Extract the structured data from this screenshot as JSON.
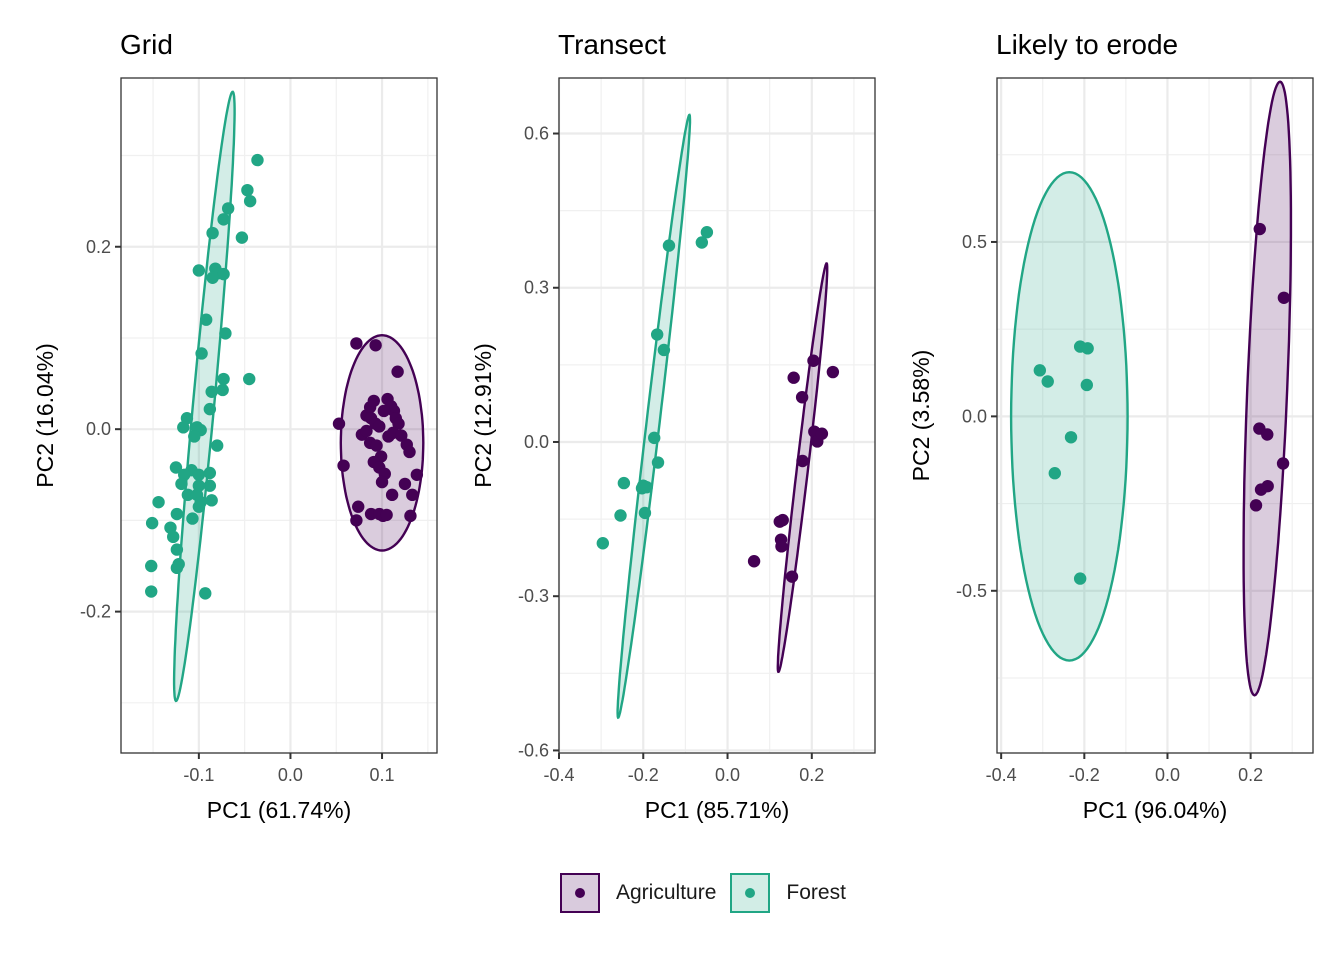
{
  "chart_data": [
    {
      "type": "scatter",
      "title": "Grid",
      "xlabel": "PC1 (61.74%)",
      "ylabel": "PC2 (16.04%)",
      "xlim": [
        -0.185,
        0.16
      ],
      "ylim": [
        -0.355,
        0.385
      ],
      "xticks": [
        -0.1,
        0.0,
        0.1
      ],
      "xtick_labels": [
        "-0.1",
        "0.0",
        "0.1"
      ],
      "yticks": [
        -0.2,
        0.0,
        0.2
      ],
      "ytick_labels": [
        "-0.2",
        "0.0",
        "0.2"
      ],
      "grid": true,
      "series": [
        {
          "name": "Agriculture",
          "points": [
            [
              0.072,
              0.094
            ],
            [
              0.093,
              0.092
            ],
            [
              0.117,
              0.063
            ],
            [
              0.053,
              0.006
            ],
            [
              0.058,
              -0.04
            ],
            [
              0.083,
              0.015
            ],
            [
              0.087,
              0.024
            ],
            [
              0.091,
              0.031
            ],
            [
              0.088,
              0.012
            ],
            [
              0.093,
              0.006
            ],
            [
              0.106,
              0.033
            ],
            [
              0.11,
              0.025
            ],
            [
              0.113,
              0.02
            ],
            [
              0.115,
              0.012
            ],
            [
              0.118,
              0.006
            ],
            [
              0.102,
              0.02
            ],
            [
              0.097,
              0.003
            ],
            [
              0.107,
              -0.008
            ],
            [
              0.112,
              -0.004
            ],
            [
              0.078,
              -0.006
            ],
            [
              0.083,
              -0.002
            ],
            [
              0.087,
              -0.015
            ],
            [
              0.094,
              -0.018
            ],
            [
              0.099,
              -0.03
            ],
            [
              0.091,
              -0.036
            ],
            [
              0.097,
              -0.042
            ],
            [
              0.103,
              -0.049
            ],
            [
              0.1,
              -0.058
            ],
            [
              0.121,
              -0.007
            ],
            [
              0.127,
              -0.017
            ],
            [
              0.13,
              -0.025
            ],
            [
              0.138,
              -0.05
            ],
            [
              0.125,
              -0.06
            ],
            [
              0.133,
              -0.072
            ],
            [
              0.111,
              -0.072
            ],
            [
              0.074,
              -0.085
            ],
            [
              0.088,
              -0.093
            ],
            [
              0.097,
              -0.093
            ],
            [
              0.101,
              -0.095
            ],
            [
              0.105,
              -0.094
            ],
            [
              0.131,
              -0.095
            ],
            [
              0.072,
              -0.1
            ]
          ]
        },
        {
          "name": "Forest",
          "points": [
            [
              -0.036,
              0.295
            ],
            [
              -0.047,
              0.262
            ],
            [
              -0.044,
              0.25
            ],
            [
              -0.068,
              0.242
            ],
            [
              -0.073,
              0.23
            ],
            [
              -0.085,
              0.215
            ],
            [
              -0.053,
              0.21
            ],
            [
              -0.1,
              0.174
            ],
            [
              -0.082,
              0.176
            ],
            [
              -0.079,
              0.171
            ],
            [
              -0.073,
              0.17
            ],
            [
              -0.085,
              0.166
            ],
            [
              -0.092,
              0.12
            ],
            [
              -0.071,
              0.105
            ],
            [
              -0.097,
              0.083
            ],
            [
              -0.073,
              0.055
            ],
            [
              -0.045,
              0.055
            ],
            [
              -0.086,
              0.041
            ],
            [
              -0.074,
              0.043
            ],
            [
              -0.088,
              0.022
            ],
            [
              -0.113,
              0.012
            ],
            [
              -0.117,
              0.002
            ],
            [
              -0.102,
              0.002
            ],
            [
              -0.098,
              -0.001
            ],
            [
              -0.105,
              -0.008
            ],
            [
              -0.08,
              -0.018
            ],
            [
              -0.125,
              -0.042
            ],
            [
              -0.108,
              -0.045
            ],
            [
              -0.116,
              -0.05
            ],
            [
              -0.1,
              -0.05
            ],
            [
              -0.088,
              -0.048
            ],
            [
              -0.119,
              -0.06
            ],
            [
              -0.1,
              -0.062
            ],
            [
              -0.088,
              -0.062
            ],
            [
              -0.112,
              -0.072
            ],
            [
              -0.102,
              -0.072
            ],
            [
              -0.098,
              -0.08
            ],
            [
              -0.086,
              -0.078
            ],
            [
              -0.144,
              -0.08
            ],
            [
              -0.124,
              -0.093
            ],
            [
              -0.107,
              -0.098
            ],
            [
              -0.1,
              -0.085
            ],
            [
              -0.151,
              -0.103
            ],
            [
              -0.131,
              -0.108
            ],
            [
              -0.128,
              -0.118
            ],
            [
              -0.124,
              -0.132
            ],
            [
              -0.152,
              -0.15
            ],
            [
              -0.122,
              -0.148
            ],
            [
              -0.124,
              -0.152
            ],
            [
              -0.152,
              -0.178
            ],
            [
              -0.093,
              -0.18
            ]
          ]
        }
      ],
      "ellipses": [
        {
          "group": "Forest",
          "center": [
            -0.094,
            0.036
          ],
          "semi_major": 0.342,
          "semi_minor": 0.027,
          "angle_deg": 77.5
        },
        {
          "group": "Agriculture",
          "center": [
            0.1,
            -0.015
          ],
          "semi_major": 0.118,
          "semi_minor": 0.045,
          "angle_deg": 90
        }
      ]
    },
    {
      "type": "scatter",
      "title": "Transect",
      "xlabel": "PC1 (85.71%)",
      "ylabel": "PC2 (12.91%)",
      "xlim": [
        -0.4,
        0.35
      ],
      "ylim": [
        -0.605,
        0.708
      ],
      "xticks": [
        -0.4,
        -0.2,
        0.0,
        0.2
      ],
      "xtick_labels": [
        "-0.4",
        "-0.2",
        "0.0",
        "0.2"
      ],
      "yticks": [
        -0.6,
        -0.3,
        0.0,
        0.3,
        0.6
      ],
      "ytick_labels": [
        "-0.6",
        "-0.3",
        "0.0",
        "0.3",
        "0.6"
      ],
      "grid": true,
      "series": [
        {
          "name": "Agriculture",
          "points": [
            [
              0.063,
              -0.232
            ],
            [
              0.124,
              -0.155
            ],
            [
              0.131,
              -0.152
            ],
            [
              0.127,
              -0.19
            ],
            [
              0.128,
              -0.203
            ],
            [
              0.153,
              -0.262
            ],
            [
              0.157,
              0.125
            ],
            [
              0.177,
              0.087
            ],
            [
              0.178,
              -0.037
            ],
            [
              0.204,
              0.158
            ],
            [
              0.206,
              0.02
            ],
            [
              0.213,
              0.001
            ],
            [
              0.224,
              0.016
            ],
            [
              0.25,
              0.136
            ]
          ]
        },
        {
          "name": "Forest",
          "points": [
            [
              -0.049,
              0.408
            ],
            [
              -0.061,
              0.388
            ],
            [
              -0.139,
              0.382
            ],
            [
              -0.167,
              0.209
            ],
            [
              -0.151,
              0.179
            ],
            [
              -0.174,
              0.008
            ],
            [
              -0.165,
              -0.04
            ],
            [
              -0.246,
              -0.08
            ],
            [
              -0.2,
              -0.085
            ],
            [
              -0.203,
              -0.09
            ],
            [
              -0.192,
              -0.088
            ],
            [
              -0.254,
              -0.143
            ],
            [
              -0.196,
              -0.138
            ],
            [
              -0.296,
              -0.197
            ]
          ]
        }
      ],
      "ellipses": [
        {
          "group": "Forest",
          "center": [
            -0.175,
            0.05
          ],
          "semi_major": 0.62,
          "semi_minor": 0.035,
          "angle_deg": 71
        },
        {
          "group": "Agriculture",
          "center": [
            0.178,
            -0.05
          ],
          "semi_major": 0.42,
          "semi_minor": 0.03,
          "angle_deg": 71
        }
      ]
    },
    {
      "type": "scatter",
      "title": "Likely to erode",
      "xlabel": "PC1 (96.04%)",
      "ylabel": "PC2 (3.58%)",
      "xlim": [
        -0.41,
        0.35
      ],
      "ylim": [
        -0.965,
        0.97
      ],
      "xticks": [
        -0.4,
        -0.2,
        0.0,
        0.2
      ],
      "xtick_labels": [
        "-0.4",
        "-0.2",
        "0.0",
        "0.2"
      ],
      "yticks": [
        -0.5,
        0.0,
        0.5
      ],
      "ytick_labels": [
        "-0.5",
        "0.0",
        "0.5"
      ],
      "grid": true,
      "series": [
        {
          "name": "Agriculture",
          "points": [
            [
              0.222,
              0.537
            ],
            [
              0.28,
              0.34
            ],
            [
              0.221,
              -0.035
            ],
            [
              0.24,
              -0.052
            ],
            [
              0.278,
              -0.135
            ],
            [
              0.225,
              -0.21
            ],
            [
              0.241,
              -0.2
            ],
            [
              0.213,
              -0.255
            ]
          ]
        },
        {
          "name": "Forest",
          "points": [
            [
              -0.307,
              0.132
            ],
            [
              -0.288,
              0.1
            ],
            [
              -0.21,
              0.2
            ],
            [
              -0.192,
              0.195
            ],
            [
              -0.194,
              0.09
            ],
            [
              -0.232,
              -0.06
            ],
            [
              -0.271,
              -0.163
            ],
            [
              -0.21,
              -0.465
            ]
          ]
        }
      ],
      "ellipses": [
        {
          "group": "Forest",
          "center": [
            -0.236,
            0.0
          ],
          "semi_major": 0.7,
          "semi_minor": 0.14,
          "angle_deg": 90
        },
        {
          "group": "Agriculture",
          "center": [
            0.24,
            0.08
          ],
          "semi_major": 0.88,
          "semi_minor": 0.048,
          "angle_deg": 88
        }
      ]
    }
  ],
  "legend": {
    "items": [
      {
        "label": "Agriculture",
        "color": "#440154",
        "fill": "#d9cbdd"
      },
      {
        "label": "Forest",
        "color": "#21a685",
        "fill": "#d2ede6"
      }
    ]
  },
  "colors": {
    "Agriculture": "#440154",
    "Forest": "#21a685",
    "Agriculture_fill": "#440154",
    "Forest_fill": "#21a685"
  }
}
